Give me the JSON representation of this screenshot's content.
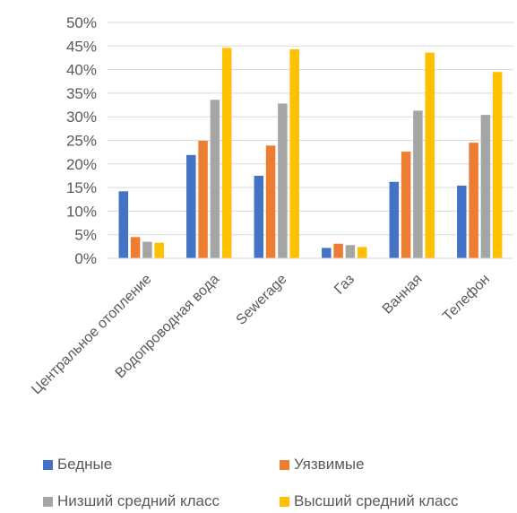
{
  "chart_data": {
    "type": "bar",
    "categories": [
      "Центральное отопление",
      "Водопроводная вода",
      "Sewerage",
      "Газ",
      "Ванная",
      "Телефон"
    ],
    "series": [
      {
        "name": "Бедные",
        "color": "#4472C4",
        "values": [
          14.2,
          21.9,
          17.5,
          2.2,
          16.2,
          15.4
        ]
      },
      {
        "name": "Уязвимые",
        "color": "#ED7D31",
        "values": [
          4.5,
          24.9,
          23.9,
          3.1,
          22.6,
          24.5
        ]
      },
      {
        "name": "Низший средний класс",
        "color": "#A5A5A5",
        "values": [
          3.5,
          33.6,
          32.8,
          2.8,
          31.3,
          30.4
        ]
      },
      {
        "name": "Высший средний класс",
        "color": "#FFC000",
        "values": [
          3.3,
          44.6,
          44.3,
          2.4,
          43.6,
          39.5
        ]
      }
    ],
    "yticks": [
      "0%",
      "5%",
      "10%",
      "15%",
      "20%",
      "25%",
      "30%",
      "35%",
      "40%",
      "45%",
      "50%"
    ],
    "ylim": [
      0,
      50
    ],
    "grid": true,
    "legend_position": "bottom",
    "title": "",
    "xlabel": "",
    "ylabel": ""
  }
}
